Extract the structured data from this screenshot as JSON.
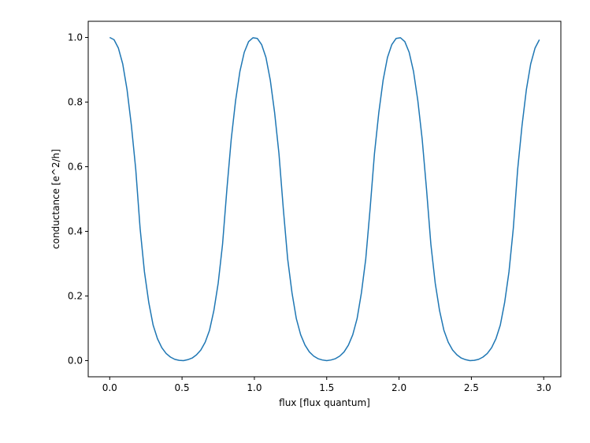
{
  "chart_data": {
    "type": "line",
    "xlabel": "flux [flux quantum]",
    "ylabel": "conductance [e^2/h]",
    "x": [
      0,
      0.03,
      0.06,
      0.09,
      0.12,
      0.15,
      0.18,
      0.21,
      0.24,
      0.27,
      0.3,
      0.33,
      0.36,
      0.39,
      0.42,
      0.45,
      0.48,
      0.51,
      0.54,
      0.57,
      0.6,
      0.63,
      0.66,
      0.69,
      0.72,
      0.75,
      0.78,
      0.81,
      0.84,
      0.87,
      0.9,
      0.93,
      0.96,
      0.99,
      1.02,
      1.05,
      1.08,
      1.11,
      1.14,
      1.17,
      1.2,
      1.23,
      1.26,
      1.29,
      1.32,
      1.35,
      1.38,
      1.41,
      1.44,
      1.47,
      1.5,
      1.53,
      1.56,
      1.59,
      1.62,
      1.65,
      1.68,
      1.71,
      1.74,
      1.77,
      1.8,
      1.83,
      1.86,
      1.89,
      1.92,
      1.95,
      1.98,
      2.01,
      2.04,
      2.07,
      2.1,
      2.13,
      2.16,
      2.19,
      2.22,
      2.25,
      2.28,
      2.31,
      2.34,
      2.37,
      2.4,
      2.43,
      2.46,
      2.49,
      2.52,
      2.55,
      2.58,
      2.61,
      2.64,
      2.67,
      2.7,
      2.73,
      2.76,
      2.79,
      2.82,
      2.85,
      2.88,
      2.91,
      2.94,
      2.97
    ],
    "series": [
      {
        "name": "conductance",
        "color": "#1f77b4",
        "values": [
          1,
          0.993,
          0.967,
          0.918,
          0.838,
          0.727,
          0.592,
          0.41,
          0.275,
          0.18,
          0.11,
          0.068,
          0.04,
          0.022,
          0.011,
          0.004,
          0.001,
          0,
          0.003,
          0.008,
          0.018,
          0.033,
          0.057,
          0.094,
          0.155,
          0.24,
          0.36,
          0.53,
          0.685,
          0.804,
          0.895,
          0.954,
          0.987,
          0.999,
          0.997,
          0.978,
          0.938,
          0.868,
          0.767,
          0.64,
          0.47,
          0.315,
          0.21,
          0.13,
          0.08,
          0.048,
          0.027,
          0.014,
          0.006,
          0.002,
          0,
          0.002,
          0.006,
          0.014,
          0.027,
          0.048,
          0.08,
          0.13,
          0.21,
          0.315,
          0.47,
          0.64,
          0.767,
          0.868,
          0.938,
          0.978,
          0.997,
          0.999,
          0.987,
          0.954,
          0.895,
          0.804,
          0.685,
          0.53,
          0.36,
          0.24,
          0.155,
          0.094,
          0.057,
          0.033,
          0.018,
          0.008,
          0.003,
          0,
          0.001,
          0.004,
          0.011,
          0.022,
          0.04,
          0.068,
          0.11,
          0.18,
          0.275,
          0.41,
          0.592,
          0.727,
          0.838,
          0.918,
          0.967,
          0.993
        ]
      }
    ],
    "xlim": [
      -0.1485,
      3.1185
    ],
    "xticks": [
      {
        "value": 0,
        "label": "0.0"
      },
      {
        "value": 0.5,
        "label": "0.5"
      },
      {
        "value": 1,
        "label": "1.0"
      },
      {
        "value": 1.5,
        "label": "1.5"
      },
      {
        "value": 2,
        "label": "2.0"
      },
      {
        "value": 2.5,
        "label": "2.5"
      },
      {
        "value": 3,
        "label": "3.0"
      }
    ],
    "ylim": [
      -0.05,
      1.05
    ],
    "yticks": [
      {
        "value": 0,
        "label": "0.0"
      },
      {
        "value": 0.2,
        "label": "0.2"
      },
      {
        "value": 0.4,
        "label": "0.4"
      },
      {
        "value": 0.6,
        "label": "0.6"
      },
      {
        "value": 0.8,
        "label": "0.8"
      },
      {
        "value": 1,
        "label": "1.0"
      }
    ]
  }
}
